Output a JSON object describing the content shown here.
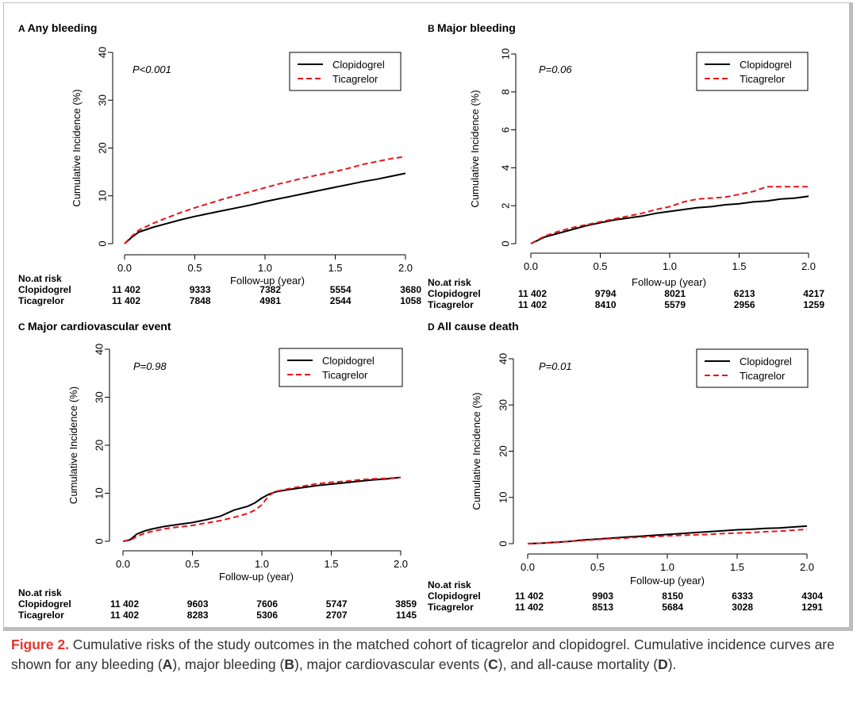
{
  "figure": {
    "caption": {
      "label": "Figure 2.",
      "text_1": " Cumulative risks of the study outcomes in the matched cohort of ticagrelor and clopidogrel. Cumulative incidence curves are shown for any bleeding (",
      "ref_a": "A",
      "text_2": "), major bleeding (",
      "ref_b": "B",
      "text_3": "), major cardiovascular events (",
      "ref_c": "C",
      "text_4": "), and all-cause mortality (",
      "ref_d": "D",
      "text_5": ")."
    }
  },
  "colors": {
    "clopidogrel": "#000000",
    "ticagrelor": "#e8141b",
    "axis": "#000000"
  },
  "chart_data": [
    {
      "type": "line",
      "panel_letter": "A",
      "title": "Any bleeding",
      "xlabel": "Follow-up (year)",
      "ylabel": "Cumulative Incidence (%)",
      "xlim": [
        0,
        2.0
      ],
      "ylim": [
        0,
        40
      ],
      "xticks": [
        "0.0",
        "0.5",
        "1.0",
        "1.5",
        "2.0"
      ],
      "yticks": [
        "0",
        "10",
        "20",
        "30",
        "40"
      ],
      "p_value": "P<0.001",
      "legend": [
        "Clopidogrel",
        "Ticagrelor"
      ],
      "legend_position": "top-right",
      "series": [
        {
          "name": "Clopidogrel",
          "style": "solid",
          "x": [
            0,
            0.05,
            0.1,
            0.2,
            0.3,
            0.4,
            0.5,
            0.6,
            0.7,
            0.8,
            0.9,
            1.0,
            1.1,
            1.2,
            1.3,
            1.4,
            1.5,
            1.6,
            1.7,
            1.8,
            1.9,
            2.0
          ],
          "y": [
            0,
            1.3,
            2.4,
            3.4,
            4.2,
            5.0,
            5.7,
            6.3,
            6.9,
            7.5,
            8.1,
            8.8,
            9.4,
            10.0,
            10.6,
            11.2,
            11.8,
            12.4,
            13.0,
            13.5,
            14.1,
            14.7
          ]
        },
        {
          "name": "Ticagrelor",
          "style": "dashed",
          "x": [
            0,
            0.05,
            0.1,
            0.2,
            0.3,
            0.4,
            0.5,
            0.6,
            0.7,
            0.8,
            0.9,
            1.0,
            1.1,
            1.2,
            1.3,
            1.4,
            1.5,
            1.6,
            1.7,
            1.8,
            1.9,
            2.0
          ],
          "y": [
            0,
            1.5,
            2.8,
            4.2,
            5.4,
            6.5,
            7.5,
            8.4,
            9.3,
            10.1,
            10.9,
            11.7,
            12.5,
            13.2,
            13.9,
            14.5,
            15.1,
            15.8,
            16.6,
            17.2,
            17.8,
            18.2
          ]
        }
      ],
      "risk_table": {
        "heading": "No.at risk",
        "rows": [
          {
            "label": "Clopidogrel",
            "values": [
              "11 402",
              "9333",
              "7382",
              "5554",
              "3680"
            ]
          },
          {
            "label": "Ticagrelor",
            "values": [
              "11 402",
              "7848",
              "4981",
              "2544",
              "1058"
            ]
          }
        ]
      }
    },
    {
      "type": "line",
      "panel_letter": "B",
      "title": "Major bleeding",
      "xlabel": "Follow-up (year)",
      "ylabel": "Cumulative Incidence (%)",
      "xlim": [
        0,
        2.0
      ],
      "ylim": [
        0,
        10
      ],
      "xticks": [
        "0.0",
        "0.5",
        "1.0",
        "1.5",
        "2.0"
      ],
      "yticks": [
        "0",
        "2",
        "4",
        "6",
        "8",
        "10"
      ],
      "p_value": "P=0.06",
      "legend": [
        "Clopidogrel",
        "Ticagrelor"
      ],
      "legend_position": "top-right",
      "series": [
        {
          "name": "Clopidogrel",
          "style": "solid",
          "x": [
            0,
            0.1,
            0.2,
            0.3,
            0.4,
            0.5,
            0.6,
            0.7,
            0.8,
            0.9,
            1.0,
            1.1,
            1.2,
            1.3,
            1.4,
            1.5,
            1.6,
            1.7,
            1.8,
            1.9,
            2.0
          ],
          "y": [
            0,
            0.35,
            0.55,
            0.75,
            0.95,
            1.1,
            1.25,
            1.35,
            1.45,
            1.6,
            1.7,
            1.8,
            1.9,
            1.95,
            2.05,
            2.1,
            2.2,
            2.25,
            2.35,
            2.4,
            2.5
          ]
        },
        {
          "name": "Ticagrelor",
          "style": "dashed",
          "x": [
            0,
            0.1,
            0.2,
            0.3,
            0.4,
            0.5,
            0.6,
            0.7,
            0.8,
            0.9,
            1.0,
            1.1,
            1.2,
            1.3,
            1.4,
            1.5,
            1.6,
            1.7,
            1.8,
            1.9,
            2.0
          ],
          "y": [
            0,
            0.4,
            0.65,
            0.85,
            1.0,
            1.15,
            1.3,
            1.45,
            1.6,
            1.8,
            1.95,
            2.2,
            2.35,
            2.4,
            2.45,
            2.6,
            2.75,
            3.0,
            3.0,
            3.0,
            3.0
          ]
        }
      ],
      "risk_table": {
        "heading": "No.at risk",
        "rows": [
          {
            "label": "Clopidogrel",
            "values": [
              "11 402",
              "9794",
              "8021",
              "6213",
              "4217"
            ]
          },
          {
            "label": "Ticagrelor",
            "values": [
              "11 402",
              "8410",
              "5579",
              "2956",
              "1259"
            ]
          }
        ]
      }
    },
    {
      "type": "line",
      "panel_letter": "C",
      "title": "Major cardiovascular event",
      "xlabel": "Follow-up (year)",
      "ylabel": "Cumulative Incidence (%)",
      "xlim": [
        0,
        2.0
      ],
      "ylim": [
        0,
        40
      ],
      "xticks": [
        "0.0",
        "0.5",
        "1.0",
        "1.5",
        "2.0"
      ],
      "yticks": [
        "0",
        "10",
        "20",
        "30",
        "40"
      ],
      "p_value": "P=0.98",
      "legend": [
        "Clopidogrel",
        "Ticagrelor"
      ],
      "legend_position": "top-right",
      "series": [
        {
          "name": "Clopidogrel",
          "style": "solid",
          "x": [
            0,
            0.05,
            0.1,
            0.15,
            0.2,
            0.3,
            0.4,
            0.5,
            0.6,
            0.7,
            0.8,
            0.9,
            0.95,
            1.0,
            1.05,
            1.1,
            1.2,
            1.3,
            1.4,
            1.5,
            1.6,
            1.7,
            1.8,
            1.9,
            2.0
          ],
          "y": [
            0,
            0.3,
            1.5,
            2.1,
            2.5,
            3.1,
            3.5,
            3.9,
            4.5,
            5.2,
            6.5,
            7.3,
            8.0,
            9.0,
            9.8,
            10.3,
            10.8,
            11.2,
            11.6,
            11.9,
            12.2,
            12.5,
            12.8,
            13.0,
            13.3
          ]
        },
        {
          "name": "Ticagrelor",
          "style": "dashed",
          "x": [
            0,
            0.05,
            0.1,
            0.15,
            0.2,
            0.3,
            0.4,
            0.5,
            0.6,
            0.7,
            0.8,
            0.9,
            0.95,
            1.0,
            1.05,
            1.1,
            1.2,
            1.3,
            1.4,
            1.5,
            1.6,
            1.7,
            1.8,
            1.9,
            2.0
          ],
          "y": [
            0,
            0.2,
            1.0,
            1.6,
            2.0,
            2.6,
            3.0,
            3.3,
            3.8,
            4.3,
            5.0,
            5.8,
            6.5,
            7.6,
            9.5,
            10.4,
            11.0,
            11.5,
            12.0,
            12.3,
            12.5,
            12.8,
            13.0,
            13.1,
            13.3
          ]
        }
      ],
      "risk_table": {
        "heading": "No.at risk",
        "rows": [
          {
            "label": "Clopidogrel",
            "values": [
              "11 402",
              "9603",
              "7606",
              "5747",
              "3859"
            ]
          },
          {
            "label": "Ticagrelor",
            "values": [
              "11 402",
              "8283",
              "5306",
              "2707",
              "1145"
            ]
          }
        ]
      }
    },
    {
      "type": "line",
      "panel_letter": "D",
      "title": "All cause death",
      "xlabel": "Follow-up (year)",
      "ylabel": "Cumulative Incidence (%)",
      "xlim": [
        0,
        2.0
      ],
      "ylim": [
        0,
        40
      ],
      "xticks": [
        "0.0",
        "0.5",
        "1.0",
        "1.5",
        "2.0"
      ],
      "yticks": [
        "0",
        "10",
        "20",
        "30",
        "40"
      ],
      "p_value": "P=0.01",
      "legend": [
        "Clopidogrel",
        "Ticagrelor"
      ],
      "legend_position": "top-right",
      "series": [
        {
          "name": "Clopidogrel",
          "style": "solid",
          "x": [
            0,
            0.1,
            0.2,
            0.3,
            0.4,
            0.5,
            0.6,
            0.7,
            0.8,
            0.9,
            1.0,
            1.1,
            1.2,
            1.3,
            1.4,
            1.5,
            1.6,
            1.7,
            1.8,
            1.9,
            2.0
          ],
          "y": [
            0,
            0.1,
            0.3,
            0.5,
            0.8,
            1.0,
            1.2,
            1.4,
            1.6,
            1.8,
            2.0,
            2.2,
            2.4,
            2.6,
            2.8,
            3.0,
            3.1,
            3.3,
            3.4,
            3.6,
            3.8
          ]
        },
        {
          "name": "Ticagrelor",
          "style": "dashed",
          "x": [
            0,
            0.1,
            0.2,
            0.3,
            0.4,
            0.5,
            0.6,
            0.7,
            0.8,
            0.9,
            1.0,
            1.1,
            1.2,
            1.3,
            1.4,
            1.5,
            1.6,
            1.7,
            1.8,
            1.9,
            2.0
          ],
          "y": [
            0,
            0.1,
            0.3,
            0.5,
            0.7,
            0.9,
            1.1,
            1.2,
            1.4,
            1.5,
            1.7,
            1.8,
            1.9,
            2.0,
            2.2,
            2.3,
            2.4,
            2.6,
            2.7,
            2.9,
            3.1
          ]
        }
      ],
      "risk_table": {
        "heading": "No.at risk",
        "rows": [
          {
            "label": "Clopidogrel",
            "values": [
              "11 402",
              "9903",
              "8150",
              "6333",
              "4304"
            ]
          },
          {
            "label": "Ticagrelor",
            "values": [
              "11 402",
              "8513",
              "5684",
              "3028",
              "1291"
            ]
          }
        ]
      }
    }
  ]
}
